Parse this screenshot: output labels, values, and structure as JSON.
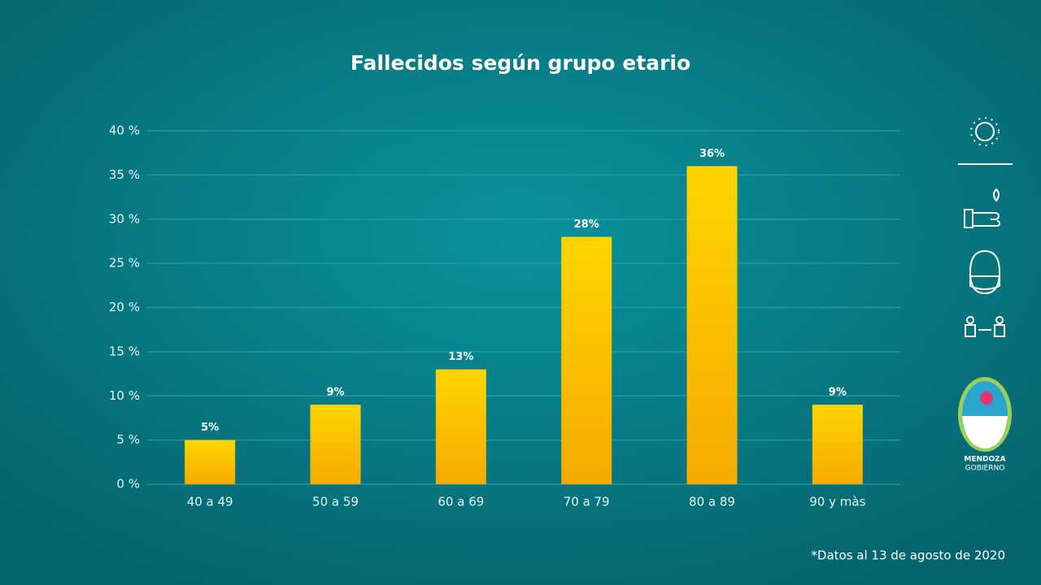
{
  "chart_data": {
    "type": "bar",
    "title": "Fallecidos según grupo etario",
    "categories": [
      "40 a 49",
      "50 a 59",
      "60 a 69",
      "70 a 79",
      "80 a 89",
      "90 y màs"
    ],
    "values": [
      5,
      9,
      13,
      28,
      36,
      9
    ],
    "value_labels": [
      "5%",
      "9%",
      "13%",
      "28%",
      "36%",
      "9%"
    ],
    "color": "#ffc400",
    "ylim": [
      0,
      40
    ],
    "yticks": [
      {
        "value": 0,
        "label": "0 %"
      },
      {
        "value": 5,
        "label": "5 %"
      },
      {
        "value": 10,
        "label": "10 %"
      },
      {
        "value": 15,
        "label": "15 %"
      },
      {
        "value": 20,
        "label": "20 %"
      },
      {
        "value": 25,
        "label": "25 %"
      },
      {
        "value": 30,
        "label": "30 %"
      },
      {
        "value": 35,
        "label": "35 %"
      },
      {
        "value": 40,
        "label": "40 %"
      }
    ],
    "grid": true
  },
  "footnote": "*Datos al 13 de agosto de 2020",
  "logo": {
    "line1": "MENDOZA",
    "line2": "GOBIERNO"
  }
}
